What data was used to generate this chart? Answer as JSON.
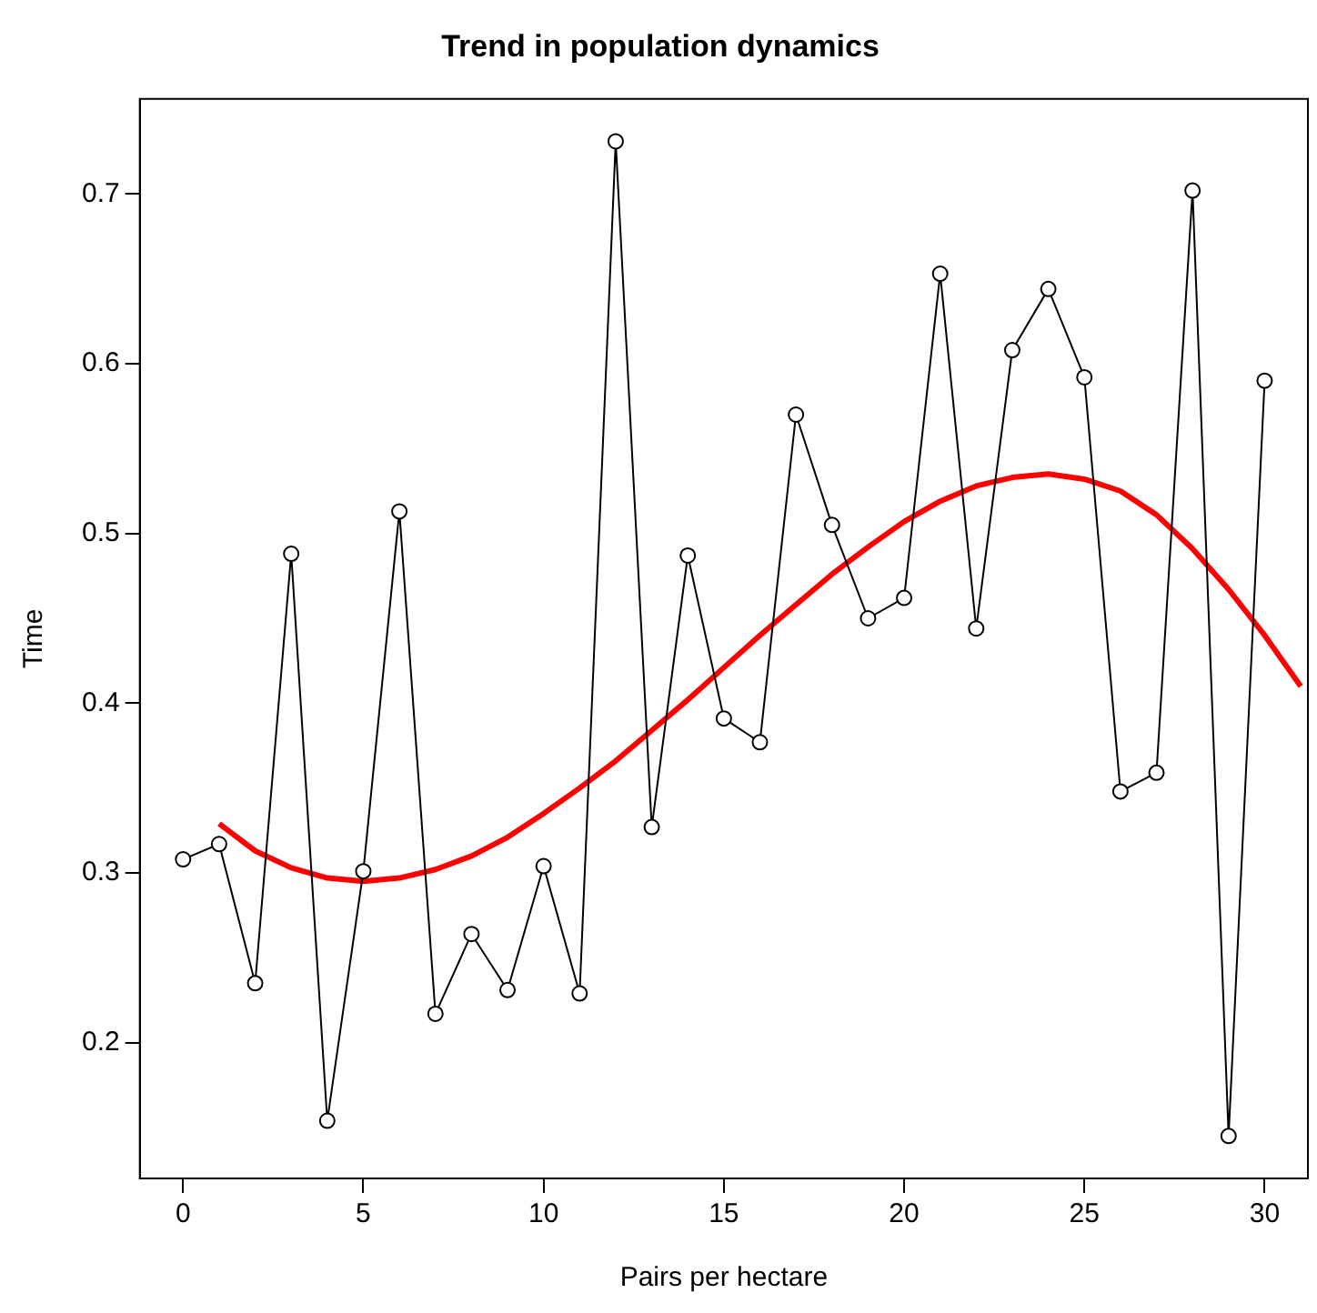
{
  "chart_data": {
    "type": "line",
    "title": "Trend in population dynamics",
    "xlabel": "Pairs per hectare",
    "ylabel": "Time",
    "xlim": [
      -1.2,
      31.2
    ],
    "xticks": [
      0,
      5,
      10,
      15,
      20,
      25,
      30
    ],
    "ylim": [
      0.12,
      0.756
    ],
    "yticks": [
      0.2,
      0.3,
      0.4,
      0.5,
      0.6,
      0.7
    ],
    "grid": false,
    "legend": false,
    "series": [
      {
        "color": "#000000",
        "marker": "circle",
        "x": [
          0,
          1,
          2,
          3,
          4,
          5,
          6,
          7,
          8,
          9,
          10,
          11,
          12,
          13,
          14,
          15,
          16,
          17,
          18,
          19,
          20,
          21,
          22,
          23,
          24,
          25,
          26,
          27,
          28,
          29,
          30
        ],
        "values": [
          0.308,
          0.317,
          0.235,
          0.488,
          0.154,
          0.301,
          0.513,
          0.217,
          0.264,
          0.231,
          0.304,
          0.229,
          0.731,
          0.327,
          0.487,
          0.391,
          0.377,
          0.57,
          0.505,
          0.45,
          0.462,
          0.653,
          0.444,
          0.608,
          0.644,
          0.592,
          0.348,
          0.359,
          0.702,
          0.145,
          0.59
        ]
      },
      {
        "color": "#ff0000",
        "marker": "none",
        "x": [
          1,
          2,
          3,
          4,
          5,
          6,
          7,
          8,
          9,
          10,
          11,
          12,
          13,
          14,
          15,
          16,
          17,
          18,
          19,
          20,
          21,
          22,
          23,
          24,
          25,
          26,
          27,
          28,
          29,
          30,
          31
        ],
        "values": [
          0.329,
          0.313,
          0.303,
          0.297,
          0.295,
          0.297,
          0.302,
          0.31,
          0.321,
          0.335,
          0.35,
          0.366,
          0.384,
          0.402,
          0.421,
          0.44,
          0.458,
          0.476,
          0.492,
          0.507,
          0.519,
          0.528,
          0.533,
          0.535,
          0.532,
          0.525,
          0.511,
          0.491,
          0.467,
          0.44,
          0.41
        ]
      }
    ]
  }
}
